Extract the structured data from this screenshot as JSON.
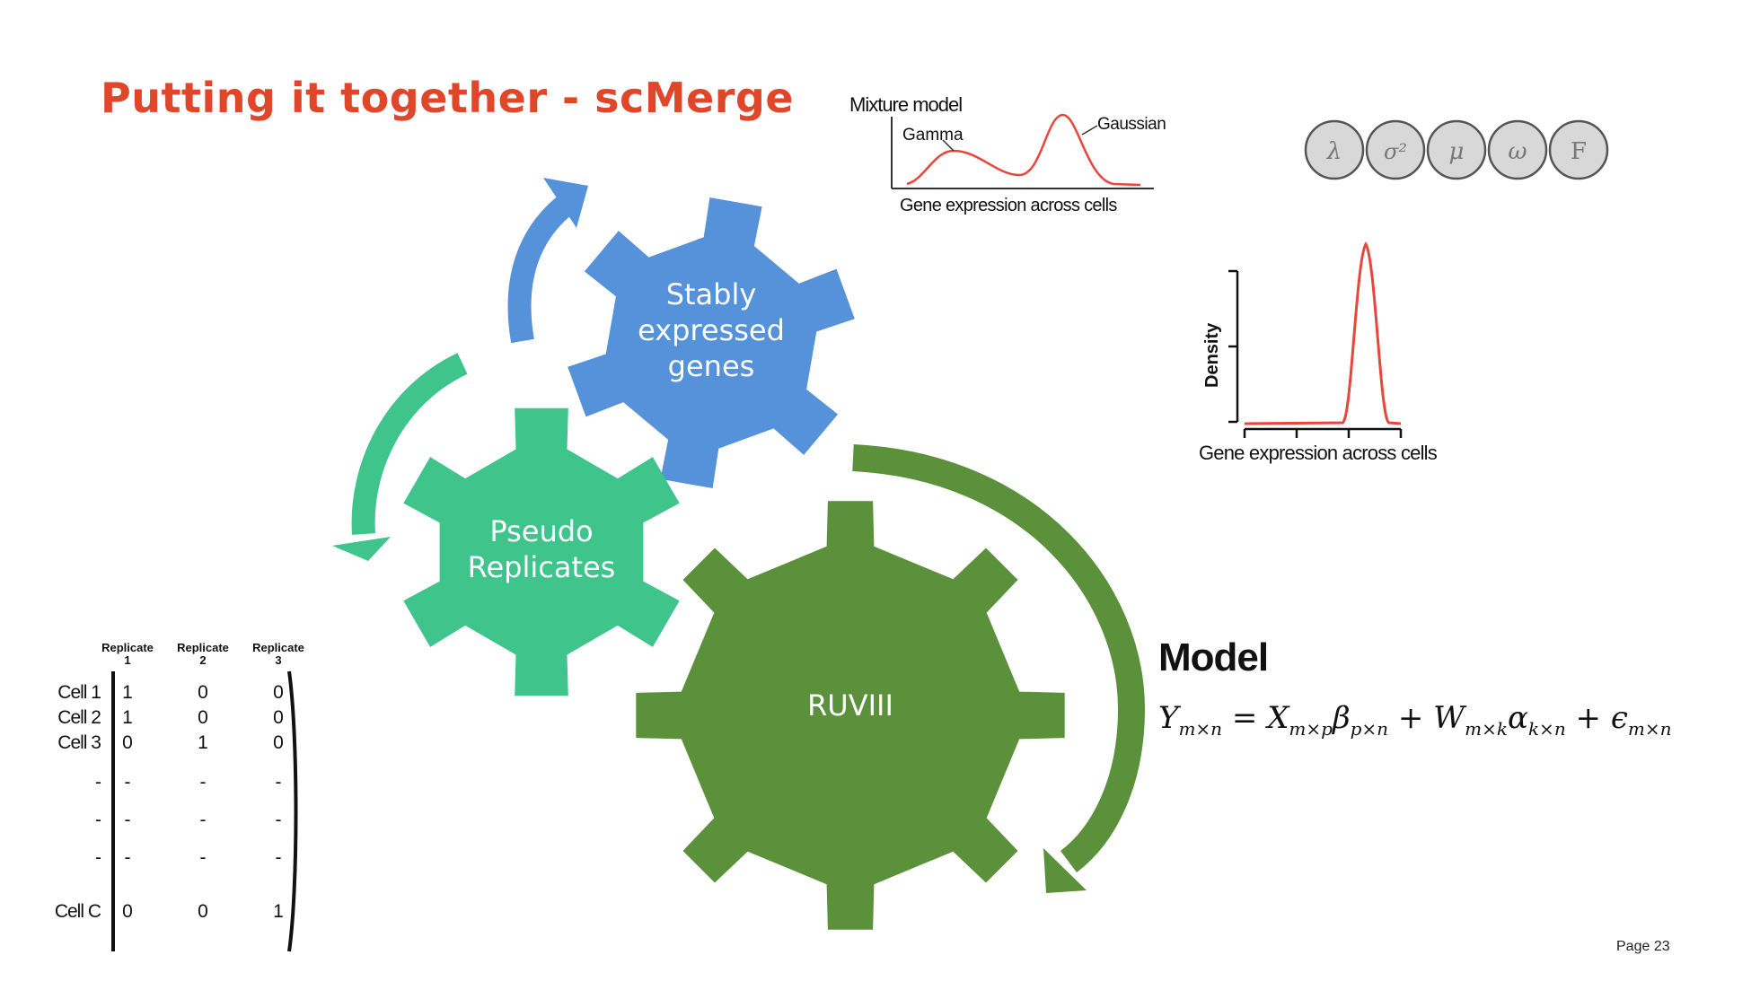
{
  "slide": {
    "title": "Putting it together - scMerge",
    "page_label": "Page 23"
  },
  "gears": {
    "stably_expressed": [
      "Stably",
      "expressed",
      "genes"
    ],
    "pseudo_replicates": [
      "Pseudo",
      "Replicates"
    ],
    "ruviii": "RUVIII"
  },
  "mixture_plot": {
    "title": "Mixture model",
    "gamma_label": "Gamma",
    "gaussian_label": "Gaussian",
    "xlabel": "Gene expression across cells"
  },
  "params": [
    "λ",
    "σ²",
    "μ",
    "ω",
    "F"
  ],
  "density_plot": {
    "ylabel": "Density",
    "xlabel": "Gene expression across cells"
  },
  "model": {
    "title": "Model",
    "lhs": "Y",
    "lhs_sub": "m×n",
    "eq": "=",
    "t1": "X",
    "t1_sub": "m×p",
    "t2": "β",
    "t2_sub": "p×n",
    "plus1": "+",
    "t3": "W",
    "t3_sub": "m×k",
    "t4": "α",
    "t4_sub": "k×n",
    "plus2": "+",
    "t5": "ϵ",
    "t5_sub": "m×n"
  },
  "replicate_matrix": {
    "headers": [
      [
        "Replicate",
        "1"
      ],
      [
        "Replicate",
        "2"
      ],
      [
        "Replicate",
        "3"
      ]
    ],
    "rows": [
      {
        "label": "Cell 1",
        "values": [
          "1",
          "0",
          "0"
        ]
      },
      {
        "label": "Cell 2",
        "values": [
          "1",
          "0",
          "0"
        ]
      },
      {
        "label": "Cell 3",
        "values": [
          "0",
          "1",
          "0"
        ]
      },
      {
        "label": "-",
        "values": [
          "-",
          "-",
          "-"
        ]
      },
      {
        "label": "-",
        "values": [
          "-",
          "-",
          "-"
        ]
      },
      {
        "label": "-",
        "values": [
          "-",
          "-",
          "-"
        ]
      },
      {
        "label": "Cell C",
        "values": [
          "0",
          "0",
          "1"
        ]
      }
    ]
  },
  "colors": {
    "title": "#e0462a",
    "blue_gear": "#5592d9",
    "teal_gear": "#3fc48b",
    "green_gear": "#5c913b",
    "curve_red": "#e8463a"
  }
}
